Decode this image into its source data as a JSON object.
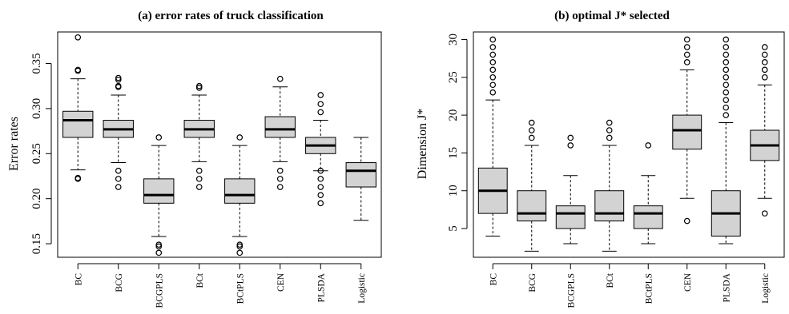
{
  "chart_data": [
    {
      "type": "boxplot",
      "title": "(a) error rates of truck classification",
      "xlabel": "",
      "ylabel": "Error rates",
      "ylim": [
        0.135,
        0.385
      ],
      "yticks": [
        "0.15",
        "0.20",
        "0.25",
        "0.30",
        "0.35"
      ],
      "categories": [
        "BC",
        "BCG",
        "BCGPLS",
        "BCt",
        "BCtPLS",
        "CEN",
        "PLSDA",
        "Logistic"
      ],
      "boxes": [
        {
          "min": 0.232,
          "q1": 0.268,
          "median": 0.287,
          "q3": 0.297,
          "max": 0.333,
          "outliers": [
            0.222,
            0.223,
            0.342,
            0.343,
            0.379
          ]
        },
        {
          "min": 0.24,
          "q1": 0.268,
          "median": 0.277,
          "q3": 0.287,
          "max": 0.315,
          "outliers": [
            0.213,
            0.222,
            0.231,
            0.324,
            0.325,
            0.332,
            0.334
          ]
        },
        {
          "min": 0.158,
          "q1": 0.195,
          "median": 0.204,
          "q3": 0.222,
          "max": 0.259,
          "outliers": [
            0.14,
            0.147,
            0.149,
            0.268
          ]
        },
        {
          "min": 0.241,
          "q1": 0.268,
          "median": 0.277,
          "q3": 0.287,
          "max": 0.315,
          "outliers": [
            0.213,
            0.222,
            0.231,
            0.323,
            0.325
          ]
        },
        {
          "min": 0.158,
          "q1": 0.195,
          "median": 0.204,
          "q3": 0.222,
          "max": 0.259,
          "outliers": [
            0.14,
            0.147,
            0.149,
            0.268
          ]
        },
        {
          "min": 0.241,
          "q1": 0.268,
          "median": 0.277,
          "q3": 0.291,
          "max": 0.324,
          "outliers": [
            0.213,
            0.222,
            0.231,
            0.333
          ]
        },
        {
          "min": 0.231,
          "q1": 0.25,
          "median": 0.259,
          "q3": 0.268,
          "max": 0.287,
          "outliers": [
            0.195,
            0.204,
            0.213,
            0.222,
            0.231,
            0.296,
            0.305,
            0.315
          ]
        },
        {
          "min": 0.176,
          "q1": 0.213,
          "median": 0.231,
          "q3": 0.24,
          "max": 0.268,
          "outliers": []
        }
      ]
    },
    {
      "type": "boxplot",
      "title": "(b) optimal J* selected",
      "xlabel": "",
      "ylabel": "Dimension J*",
      "ylim": [
        1.2,
        31.0
      ],
      "yticks": [
        "5",
        "10",
        "15",
        "20",
        "25",
        "30"
      ],
      "categories": [
        "BC",
        "BCG",
        "BCGPLS",
        "BCt",
        "BCtPLS",
        "CEN",
        "PLSDA",
        "Logistic"
      ],
      "boxes": [
        {
          "min": 4,
          "q1": 7,
          "median": 10,
          "q3": 13,
          "max": 22,
          "outliers": [
            23,
            24,
            25,
            26,
            27,
            28,
            29,
            30
          ]
        },
        {
          "min": 2,
          "q1": 6,
          "median": 7,
          "q3": 10,
          "max": 16,
          "outliers": [
            17,
            18,
            19
          ]
        },
        {
          "min": 3,
          "q1": 5,
          "median": 7,
          "q3": 8,
          "max": 12,
          "outliers": [
            16,
            17
          ]
        },
        {
          "min": 2,
          "q1": 6,
          "median": 7,
          "q3": 10,
          "max": 16,
          "outliers": [
            17,
            18,
            19
          ]
        },
        {
          "min": 3,
          "q1": 5,
          "median": 7,
          "q3": 8,
          "max": 12,
          "outliers": [
            16
          ]
        },
        {
          "min": 9,
          "q1": 15.5,
          "median": 18,
          "q3": 20,
          "max": 26,
          "outliers": [
            6,
            27,
            28,
            29,
            30
          ]
        },
        {
          "min": 3,
          "q1": 4,
          "median": 7,
          "q3": 10,
          "max": 19,
          "outliers": [
            20,
            21,
            22,
            23,
            24,
            25,
            26,
            27,
            28,
            29,
            30
          ]
        },
        {
          "min": 9,
          "q1": 14,
          "median": 16,
          "q3": 18,
          "max": 24,
          "outliers": [
            7,
            25,
            26,
            27,
            28,
            29
          ]
        }
      ]
    }
  ],
  "style": {
    "box_fill": "#d3d3d3",
    "stroke": "#000000",
    "median_stroke": "#000000",
    "outlier_marker": "open-circle"
  }
}
